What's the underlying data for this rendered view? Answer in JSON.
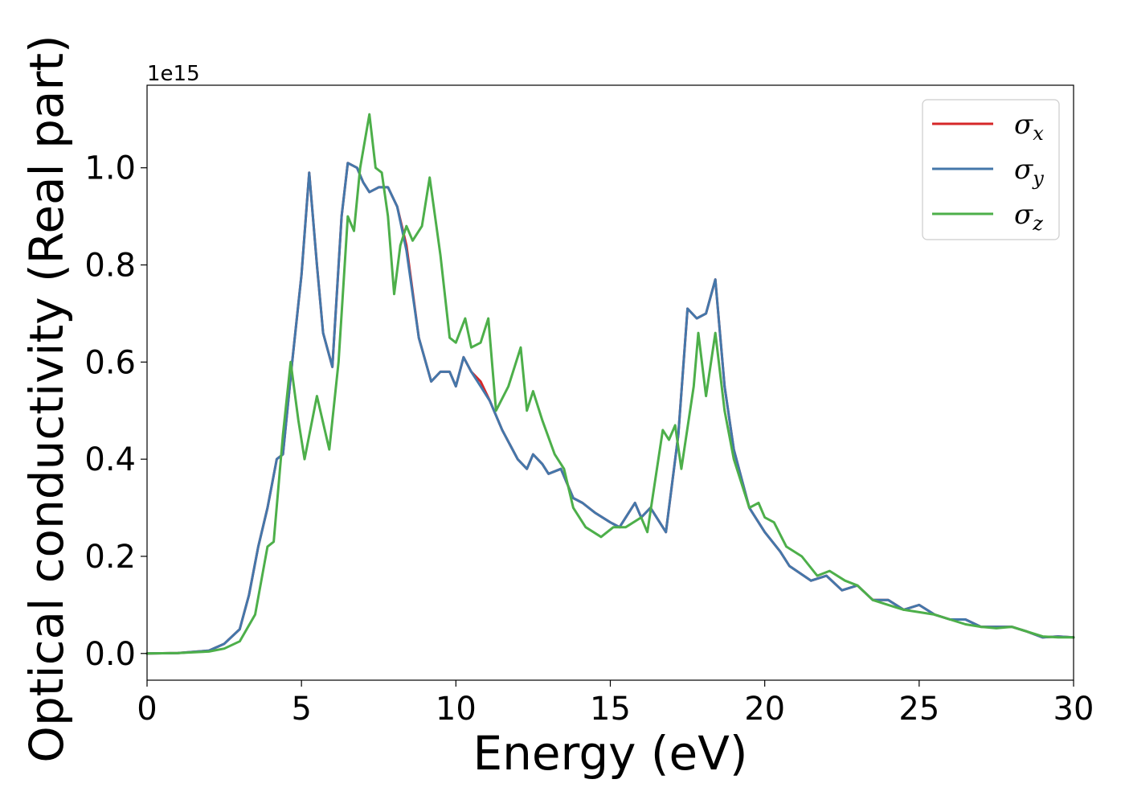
{
  "chart_data": {
    "type": "line",
    "title": "",
    "xlabel": "Energy (eV)",
    "ylabel": "Optical conductivity (Real part)",
    "y_offset_label": "1e15",
    "xlim": [
      0,
      30
    ],
    "ylim": [
      -0.055,
      1.17
    ],
    "xticks": [
      0,
      5,
      10,
      15,
      20,
      25,
      30
    ],
    "xtick_labels": [
      "0",
      "5",
      "10",
      "15",
      "20",
      "25",
      "30"
    ],
    "yticks": [
      0.0,
      0.2,
      0.4,
      0.6,
      0.8,
      1.0
    ],
    "ytick_labels": [
      "0.0",
      "0.2",
      "0.4",
      "0.6",
      "0.8",
      "1.0"
    ],
    "grid": false,
    "legend": {
      "placement": "top-right",
      "entries": [
        {
          "base": "σ",
          "sub": "x",
          "color": "#d62728"
        },
        {
          "base": "σ",
          "sub": "y",
          "color": "#4477aa"
        },
        {
          "base": "σ",
          "sub": "z",
          "color": "#4daf4a"
        }
      ]
    },
    "series": [
      {
        "key": "x",
        "color": "#d62728",
        "points": [
          [
            0,
            0
          ],
          [
            1,
            0.001
          ],
          [
            2,
            0.006
          ],
          [
            2.5,
            0.02
          ],
          [
            3,
            0.05
          ],
          [
            3.3,
            0.12
          ],
          [
            3.6,
            0.22
          ],
          [
            3.9,
            0.3
          ],
          [
            4.2,
            0.4
          ],
          [
            4.4,
            0.41
          ],
          [
            4.7,
            0.6
          ],
          [
            5,
            0.78
          ],
          [
            5.25,
            0.99
          ],
          [
            5.5,
            0.8
          ],
          [
            5.7,
            0.66
          ],
          [
            6,
            0.59
          ],
          [
            6.3,
            0.9
          ],
          [
            6.5,
            1.01
          ],
          [
            6.8,
            1.0
          ],
          [
            7,
            0.97
          ],
          [
            7.2,
            0.95
          ],
          [
            7.5,
            0.96
          ],
          [
            7.8,
            0.96
          ],
          [
            8.1,
            0.92
          ],
          [
            8.4,
            0.84
          ],
          [
            8.8,
            0.65
          ],
          [
            9.2,
            0.56
          ],
          [
            9.5,
            0.58
          ],
          [
            9.8,
            0.58
          ],
          [
            10,
            0.55
          ],
          [
            10.25,
            0.61
          ],
          [
            10.5,
            0.58
          ],
          [
            10.8,
            0.56
          ],
          [
            11.1,
            0.52
          ],
          [
            11.5,
            0.46
          ],
          [
            12,
            0.4
          ],
          [
            12.3,
            0.38
          ],
          [
            12.5,
            0.41
          ],
          [
            12.8,
            0.39
          ],
          [
            13,
            0.37
          ],
          [
            13.4,
            0.38
          ],
          [
            13.8,
            0.32
          ],
          [
            14.1,
            0.31
          ],
          [
            14.5,
            0.29
          ],
          [
            15,
            0.27
          ],
          [
            15.3,
            0.26
          ],
          [
            15.8,
            0.31
          ],
          [
            16,
            0.28
          ],
          [
            16.3,
            0.3
          ],
          [
            16.8,
            0.25
          ],
          [
            17.2,
            0.45
          ],
          [
            17.5,
            0.71
          ],
          [
            17.8,
            0.69
          ],
          [
            18.1,
            0.7
          ],
          [
            18.4,
            0.77
          ],
          [
            18.7,
            0.55
          ],
          [
            19,
            0.42
          ],
          [
            19.5,
            0.3
          ],
          [
            20,
            0.25
          ],
          [
            20.5,
            0.21
          ],
          [
            20.8,
            0.18
          ],
          [
            21.5,
            0.15
          ],
          [
            22,
            0.16
          ],
          [
            22.5,
            0.13
          ],
          [
            23,
            0.14
          ],
          [
            23.5,
            0.11
          ],
          [
            24,
            0.11
          ],
          [
            24.5,
            0.09
          ],
          [
            25,
            0.1
          ],
          [
            25.5,
            0.08
          ],
          [
            26,
            0.07
          ],
          [
            26.5,
            0.07
          ],
          [
            27,
            0.055
          ],
          [
            28,
            0.055
          ],
          [
            28.5,
            0.045
          ],
          [
            29,
            0.033
          ],
          [
            29.5,
            0.035
          ],
          [
            30,
            0.033
          ]
        ]
      },
      {
        "key": "y",
        "color": "#4477aa",
        "points": [
          [
            0,
            0
          ],
          [
            1,
            0.001
          ],
          [
            2,
            0.006
          ],
          [
            2.5,
            0.02
          ],
          [
            3,
            0.05
          ],
          [
            3.3,
            0.12
          ],
          [
            3.6,
            0.22
          ],
          [
            3.9,
            0.3
          ],
          [
            4.2,
            0.4
          ],
          [
            4.4,
            0.41
          ],
          [
            4.7,
            0.6
          ],
          [
            5,
            0.78
          ],
          [
            5.25,
            0.99
          ],
          [
            5.5,
            0.8
          ],
          [
            5.7,
            0.66
          ],
          [
            6,
            0.59
          ],
          [
            6.3,
            0.9
          ],
          [
            6.5,
            1.01
          ],
          [
            6.8,
            1.0
          ],
          [
            7,
            0.97
          ],
          [
            7.2,
            0.95
          ],
          [
            7.5,
            0.96
          ],
          [
            7.8,
            0.96
          ],
          [
            8.1,
            0.92
          ],
          [
            8.4,
            0.83
          ],
          [
            8.8,
            0.65
          ],
          [
            9.2,
            0.56
          ],
          [
            9.5,
            0.58
          ],
          [
            9.8,
            0.58
          ],
          [
            10,
            0.55
          ],
          [
            10.25,
            0.61
          ],
          [
            10.5,
            0.58
          ],
          [
            10.8,
            0.55
          ],
          [
            11.1,
            0.52
          ],
          [
            11.5,
            0.46
          ],
          [
            12,
            0.4
          ],
          [
            12.3,
            0.38
          ],
          [
            12.5,
            0.41
          ],
          [
            12.8,
            0.39
          ],
          [
            13,
            0.37
          ],
          [
            13.4,
            0.38
          ],
          [
            13.8,
            0.32
          ],
          [
            14.1,
            0.31
          ],
          [
            14.5,
            0.29
          ],
          [
            15,
            0.27
          ],
          [
            15.3,
            0.26
          ],
          [
            15.8,
            0.31
          ],
          [
            16,
            0.28
          ],
          [
            16.3,
            0.3
          ],
          [
            16.8,
            0.25
          ],
          [
            17.2,
            0.45
          ],
          [
            17.5,
            0.71
          ],
          [
            17.8,
            0.69
          ],
          [
            18.1,
            0.7
          ],
          [
            18.4,
            0.77
          ],
          [
            18.7,
            0.55
          ],
          [
            19,
            0.42
          ],
          [
            19.5,
            0.3
          ],
          [
            20,
            0.25
          ],
          [
            20.5,
            0.21
          ],
          [
            20.8,
            0.18
          ],
          [
            21.5,
            0.15
          ],
          [
            22,
            0.16
          ],
          [
            22.5,
            0.13
          ],
          [
            23,
            0.14
          ],
          [
            23.5,
            0.11
          ],
          [
            24,
            0.11
          ],
          [
            24.5,
            0.09
          ],
          [
            25,
            0.1
          ],
          [
            25.5,
            0.08
          ],
          [
            26,
            0.07
          ],
          [
            26.5,
            0.07
          ],
          [
            27,
            0.055
          ],
          [
            28,
            0.055
          ],
          [
            28.5,
            0.045
          ],
          [
            29,
            0.033
          ],
          [
            29.5,
            0.035
          ],
          [
            30,
            0.033
          ]
        ]
      },
      {
        "key": "z",
        "color": "#4daf4a",
        "points": [
          [
            0,
            0
          ],
          [
            1,
            0.001
          ],
          [
            2,
            0.004
          ],
          [
            2.5,
            0.01
          ],
          [
            3,
            0.025
          ],
          [
            3.5,
            0.08
          ],
          [
            3.9,
            0.22
          ],
          [
            4.1,
            0.23
          ],
          [
            4.4,
            0.45
          ],
          [
            4.65,
            0.6
          ],
          [
            4.9,
            0.48
          ],
          [
            5.1,
            0.4
          ],
          [
            5.5,
            0.53
          ],
          [
            5.9,
            0.42
          ],
          [
            6.2,
            0.6
          ],
          [
            6.5,
            0.9
          ],
          [
            6.7,
            0.87
          ],
          [
            6.9,
            1.0
          ],
          [
            7.2,
            1.11
          ],
          [
            7.4,
            1.0
          ],
          [
            7.6,
            0.99
          ],
          [
            7.8,
            0.9
          ],
          [
            8,
            0.74
          ],
          [
            8.2,
            0.84
          ],
          [
            8.4,
            0.88
          ],
          [
            8.6,
            0.85
          ],
          [
            8.9,
            0.88
          ],
          [
            9.15,
            0.98
          ],
          [
            9.5,
            0.82
          ],
          [
            9.8,
            0.65
          ],
          [
            10,
            0.64
          ],
          [
            10.3,
            0.69
          ],
          [
            10.5,
            0.63
          ],
          [
            10.8,
            0.64
          ],
          [
            11.05,
            0.69
          ],
          [
            11.3,
            0.5
          ],
          [
            11.7,
            0.55
          ],
          [
            12.1,
            0.63
          ],
          [
            12.3,
            0.5
          ],
          [
            12.5,
            0.54
          ],
          [
            12.8,
            0.48
          ],
          [
            13.2,
            0.41
          ],
          [
            13.5,
            0.38
          ],
          [
            13.8,
            0.3
          ],
          [
            14.2,
            0.26
          ],
          [
            14.7,
            0.24
          ],
          [
            15.1,
            0.26
          ],
          [
            15.5,
            0.26
          ],
          [
            16,
            0.28
          ],
          [
            16.2,
            0.25
          ],
          [
            16.7,
            0.46
          ],
          [
            16.9,
            0.44
          ],
          [
            17.1,
            0.47
          ],
          [
            17.3,
            0.38
          ],
          [
            17.7,
            0.55
          ],
          [
            17.85,
            0.66
          ],
          [
            18.1,
            0.53
          ],
          [
            18.4,
            0.66
          ],
          [
            18.7,
            0.5
          ],
          [
            19,
            0.4
          ],
          [
            19.5,
            0.3
          ],
          [
            19.8,
            0.31
          ],
          [
            20,
            0.28
          ],
          [
            20.3,
            0.27
          ],
          [
            20.7,
            0.22
          ],
          [
            21.2,
            0.2
          ],
          [
            21.7,
            0.16
          ],
          [
            22.1,
            0.17
          ],
          [
            22.6,
            0.15
          ],
          [
            23,
            0.14
          ],
          [
            23.5,
            0.11
          ],
          [
            24,
            0.1
          ],
          [
            24.5,
            0.09
          ],
          [
            25,
            0.085
          ],
          [
            25.5,
            0.08
          ],
          [
            26,
            0.07
          ],
          [
            26.5,
            0.06
          ],
          [
            27,
            0.055
          ],
          [
            27.5,
            0.052
          ],
          [
            28,
            0.055
          ],
          [
            28.5,
            0.045
          ],
          [
            29,
            0.035
          ],
          [
            29.5,
            0.033
          ],
          [
            30,
            0.033
          ]
        ]
      }
    ]
  }
}
